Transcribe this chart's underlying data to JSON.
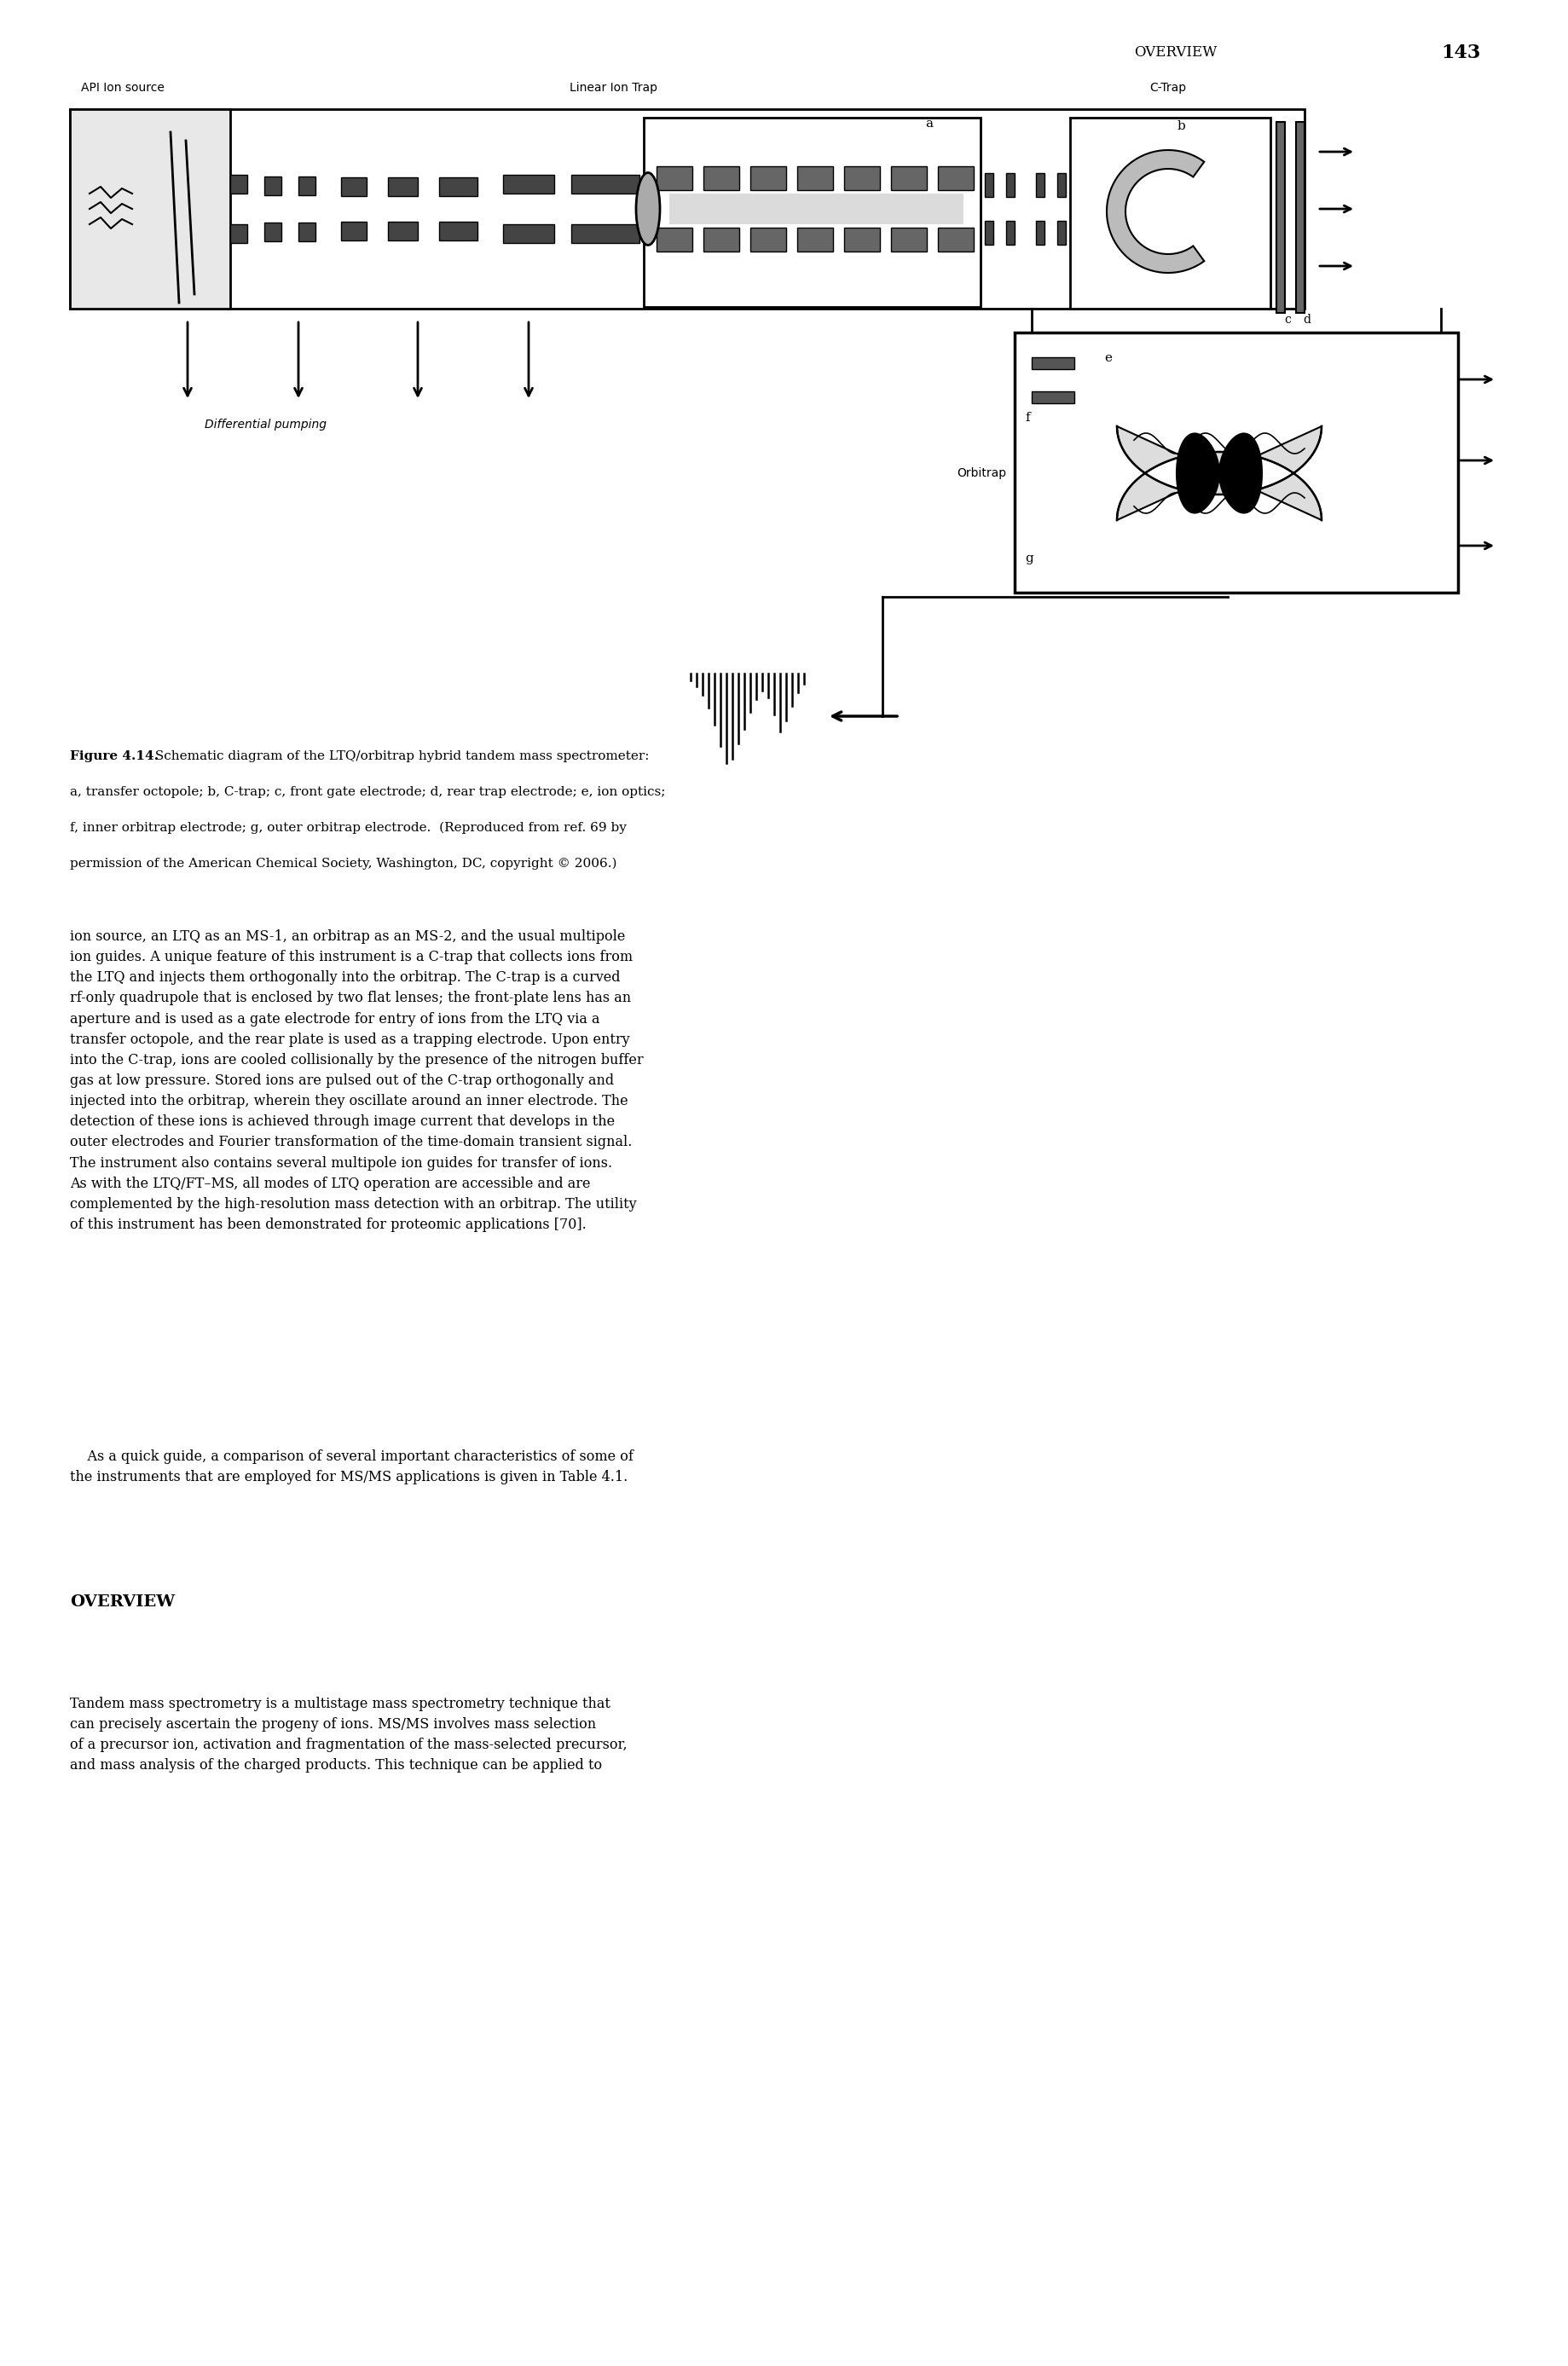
{
  "page_header_right": "OVERVIEW",
  "page_number": "143",
  "figure_caption_bold": "Figure 4.14.",
  "figure_caption_line1": " Schematic diagram of the LTQ/orbitrap hybrid tandem mass spectrometer:",
  "figure_caption_line2": "a, transfer octopole; b, C-trap; c, front gate electrode; d, rear trap electrode; e, ion optics;",
  "figure_caption_line3": "f, inner orbitrap electrode; g, outer orbitrap electrode.  (Reproduced from ref. 69 by",
  "figure_caption_line4": "permission of the American Chemical Society, Washington, DC, copyright © 2006.)",
  "label_api": "API Ion source",
  "label_linear": "Linear Ion Trap",
  "label_ctrap": "C-Trap",
  "label_diff": "Differential pumping",
  "label_orbitrap": "Orbitrap",
  "label_a": "a",
  "label_b": "b",
  "label_c": "c",
  "label_d": "d",
  "label_e": "e",
  "label_f": "f",
  "label_g": "g",
  "para1_text": "ion source, an LTQ as an MS-1, an orbitrap as an MS-2, and the usual multipole\nion guides. A unique feature of this instrument is a C-trap that collects ions from\nthe LTQ and injects them orthogonally into the orbitrap. The C-trap is a curved\nrf-only quadrupole that is enclosed by two flat lenses; the front-plate lens has an\naperture and is used as a gate electrode for entry of ions from the LTQ via a\ntransfer octopole, and the rear plate is used as a trapping electrode. Upon entry\ninto the C-trap, ions are cooled collisionally by the presence of the nitrogen buffer\ngas at low pressure. Stored ions are pulsed out of the C-trap orthogonally and\ninjected into the orbitrap, wherein they oscillate around an inner electrode. The\ndetection of these ions is achieved through image current that develops in the\nouter electrodes and Fourier transformation of the time-domain transient signal.\nThe instrument also contains several multipole ion guides for transfer of ions.\nAs with the LTQ/FT–MS, all modes of LTQ operation are accessible and are\ncomplemented by the high-resolution mass detection with an orbitrap. The utility\nof this instrument has been demonstrated for proteomic applications [70].",
  "para2_text": "    As a quick guide, a comparison of several important characteristics of some of\nthe instruments that are employed for MS/MS applications is given in Table 4.1.",
  "section_title": "OVERVIEW",
  "para3_text": "Tandem mass spectrometry is a multistage mass spectrometry technique that\ncan precisely ascertain the progeny of ions. MS/MS involves mass selection\nof a precursor ion, activation and fragmentation of the mass-selected precursor,\nand mass analysis of the charged products. This technique can be applied to",
  "bg_color": "#ffffff",
  "text_color": "#000000"
}
